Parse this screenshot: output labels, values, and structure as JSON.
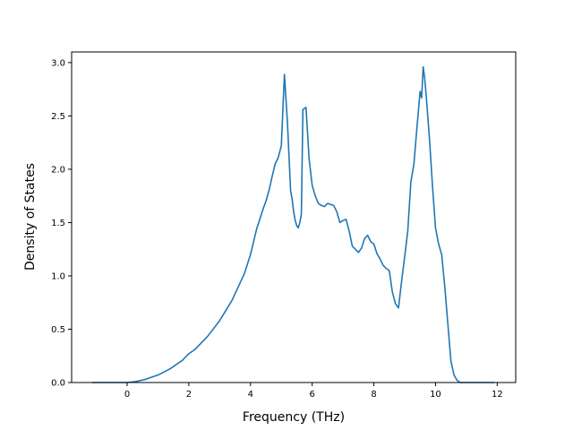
{
  "chart_data": {
    "type": "line",
    "title": "",
    "xlabel": "Frequency (THz)",
    "ylabel": "Density of States",
    "xlim": [
      -1.8,
      12.6
    ],
    "ylim": [
      0,
      3.1
    ],
    "xticks": [
      0,
      2,
      4,
      6,
      8,
      10,
      12
    ],
    "yticks": [
      0.0,
      0.5,
      1.0,
      1.5,
      2.0,
      2.5,
      3.0
    ],
    "xtick_labels": [
      "0",
      "2",
      "4",
      "6",
      "8",
      "10",
      "12"
    ],
    "ytick_labels": [
      "0.0",
      "0.5",
      "1.0",
      "1.5",
      "2.0",
      "2.5",
      "3.0"
    ],
    "grid": false,
    "legend": "none",
    "series": [
      {
        "color": "#1f77b4",
        "x": [
          -1.12,
          -0.5,
          0.0,
          0.3,
          0.6,
          1.0,
          1.4,
          1.8,
          2.0,
          2.2,
          2.6,
          3.0,
          3.4,
          3.8,
          4.0,
          4.2,
          4.4,
          4.5,
          4.6,
          4.7,
          4.8,
          4.9,
          5.0,
          5.1,
          5.2,
          5.3,
          5.35,
          5.4,
          5.45,
          5.5,
          5.55,
          5.6,
          5.65,
          5.7,
          5.8,
          5.9,
          6.0,
          6.1,
          6.2,
          6.3,
          6.4,
          6.5,
          6.6,
          6.7,
          6.8,
          6.9,
          7.0,
          7.1,
          7.2,
          7.3,
          7.4,
          7.5,
          7.6,
          7.7,
          7.8,
          7.9,
          8.0,
          8.1,
          8.2,
          8.3,
          8.4,
          8.5,
          8.6,
          8.7,
          8.8,
          8.9,
          9.0,
          9.1,
          9.2,
          9.3,
          9.4,
          9.5,
          9.55,
          9.6,
          9.65,
          9.7,
          9.8,
          9.9,
          10.0,
          10.1,
          10.2,
          10.3,
          10.4,
          10.5,
          10.6,
          10.7,
          10.8,
          10.9,
          11.0,
          11.5,
          11.9
        ],
        "y": [
          0.0,
          0.0,
          0.0,
          0.01,
          0.03,
          0.07,
          0.13,
          0.21,
          0.27,
          0.31,
          0.43,
          0.58,
          0.77,
          1.02,
          1.2,
          1.44,
          1.62,
          1.7,
          1.8,
          1.93,
          2.05,
          2.11,
          2.22,
          2.89,
          2.43,
          1.8,
          1.72,
          1.6,
          1.52,
          1.47,
          1.45,
          1.5,
          1.58,
          2.56,
          2.58,
          2.1,
          1.85,
          1.75,
          1.68,
          1.66,
          1.65,
          1.68,
          1.67,
          1.66,
          1.6,
          1.5,
          1.52,
          1.53,
          1.42,
          1.28,
          1.25,
          1.22,
          1.26,
          1.35,
          1.38,
          1.32,
          1.3,
          1.21,
          1.16,
          1.1,
          1.07,
          1.05,
          0.85,
          0.74,
          0.7,
          0.95,
          1.18,
          1.42,
          1.88,
          2.05,
          2.4,
          2.73,
          2.67,
          2.96,
          2.85,
          2.68,
          2.3,
          1.85,
          1.45,
          1.3,
          1.2,
          0.9,
          0.55,
          0.2,
          0.07,
          0.02,
          0.0,
          0.0,
          0.0,
          0.0,
          0.0
        ]
      }
    ]
  }
}
